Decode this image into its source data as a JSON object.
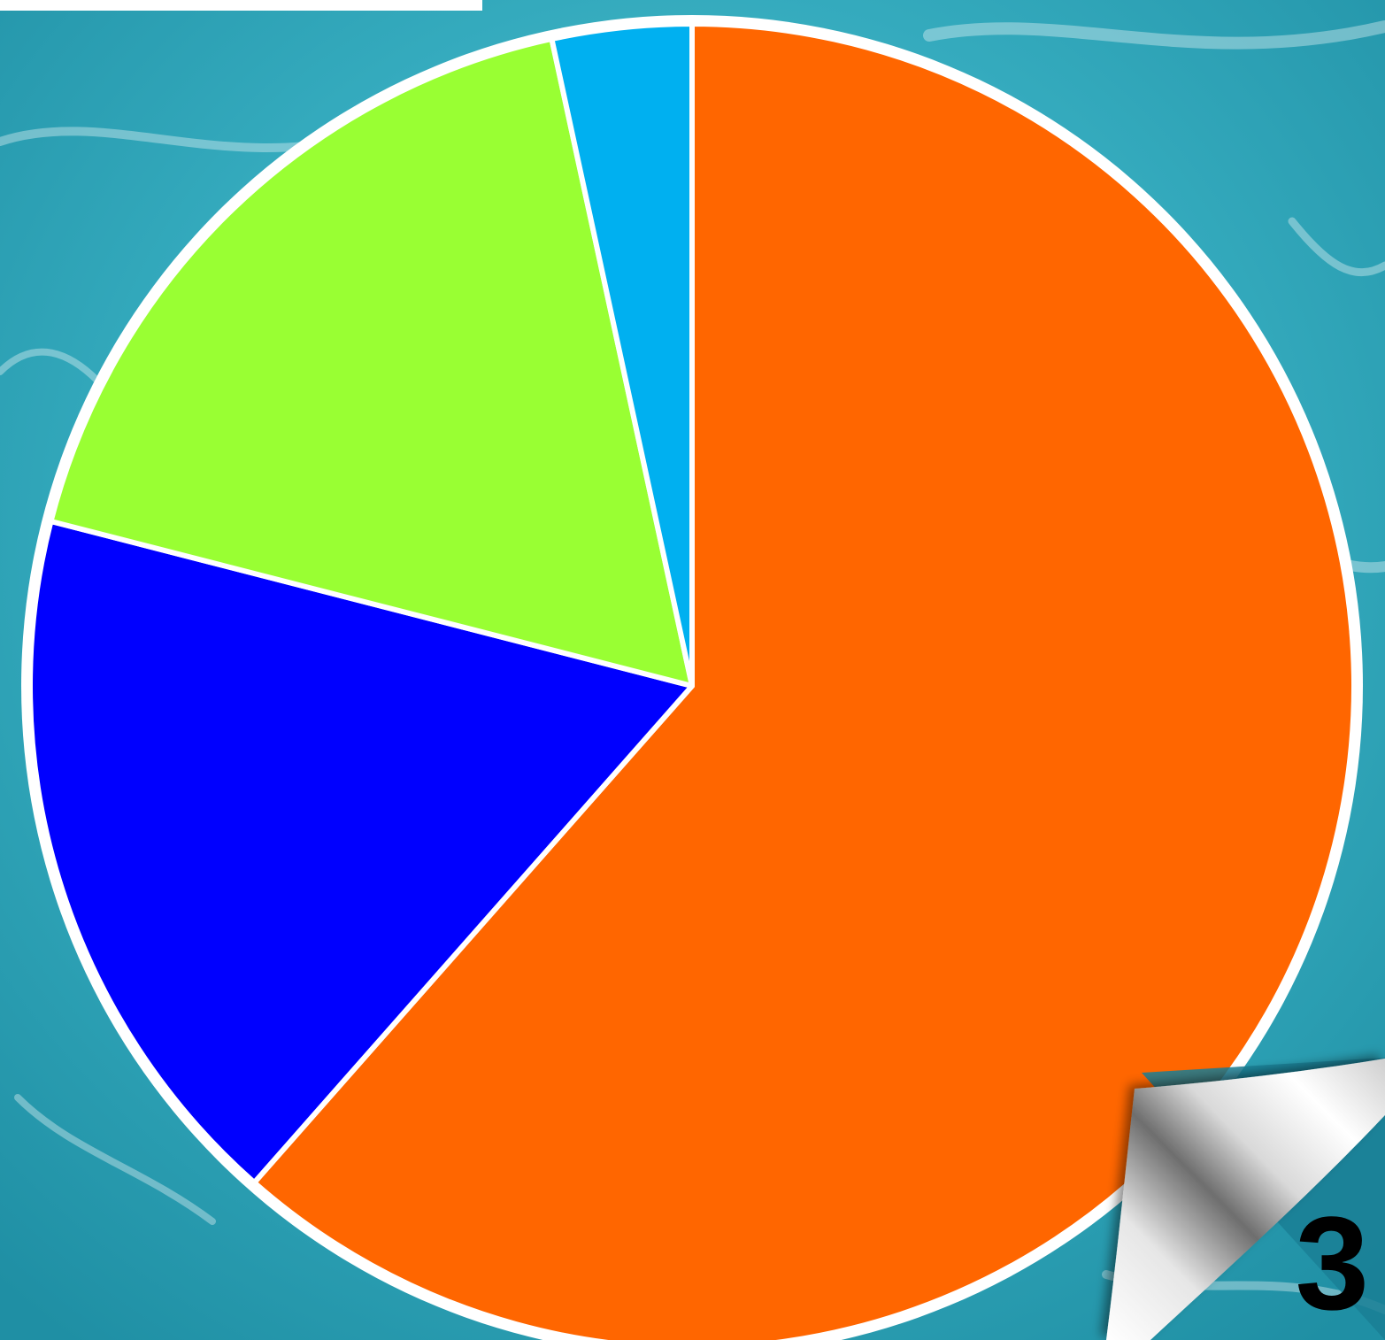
{
  "page_number": "3",
  "colors": {
    "background": "#3fb3c6",
    "background_dark": "#1d8fa6",
    "background_light": "#8fdbe6",
    "slice_border": "#ffffff"
  },
  "chart_data": {
    "type": "pie",
    "start_angle_deg": 0,
    "direction": "clockwise",
    "slices": [
      {
        "value": 61.5,
        "color": "#ff6600"
      },
      {
        "value": 17.5,
        "color": "#0000ff"
      },
      {
        "value": 17.6,
        "color": "#99ff33"
      },
      {
        "value": 3.4,
        "color": "#00b0f0"
      }
    ]
  }
}
